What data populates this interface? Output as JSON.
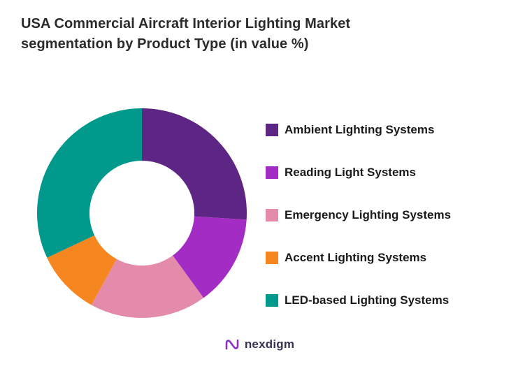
{
  "title": "USA Commercial Aircraft Interior Lighting Market segmentation by Product Type (in value %)",
  "footer": {
    "logo_text": "nexdigm"
  },
  "colors": {
    "background": "#ffffff",
    "title_text": "#2b2b2b",
    "legend_text": "#1a1a1a",
    "donut_hole": "#ffffff",
    "logo_icon": "#8a2fc9",
    "logo_text": "#3a3356"
  },
  "chart_data": {
    "type": "pie",
    "subtype": "donut",
    "title": "USA Commercial Aircraft Interior Lighting Market segmentation by Product Type (in value %)",
    "unit": "value %",
    "legend_position": "right",
    "start_angle_deg": 0,
    "direction": "clockwise",
    "inner_radius_ratio": 0.5,
    "series": [
      {
        "name": "Ambient Lighting Systems",
        "value": 26,
        "color": "#5d2684"
      },
      {
        "name": "Reading Light Systems",
        "value": 14,
        "color": "#a32cc4"
      },
      {
        "name": "Emergency Lighting Systems",
        "value": 18,
        "color": "#e48bab"
      },
      {
        "name": "Accent Lighting Systems",
        "value": 10,
        "color": "#f6861f"
      },
      {
        "name": "LED-based Lighting Systems",
        "value": 32,
        "color": "#00998b"
      }
    ]
  }
}
